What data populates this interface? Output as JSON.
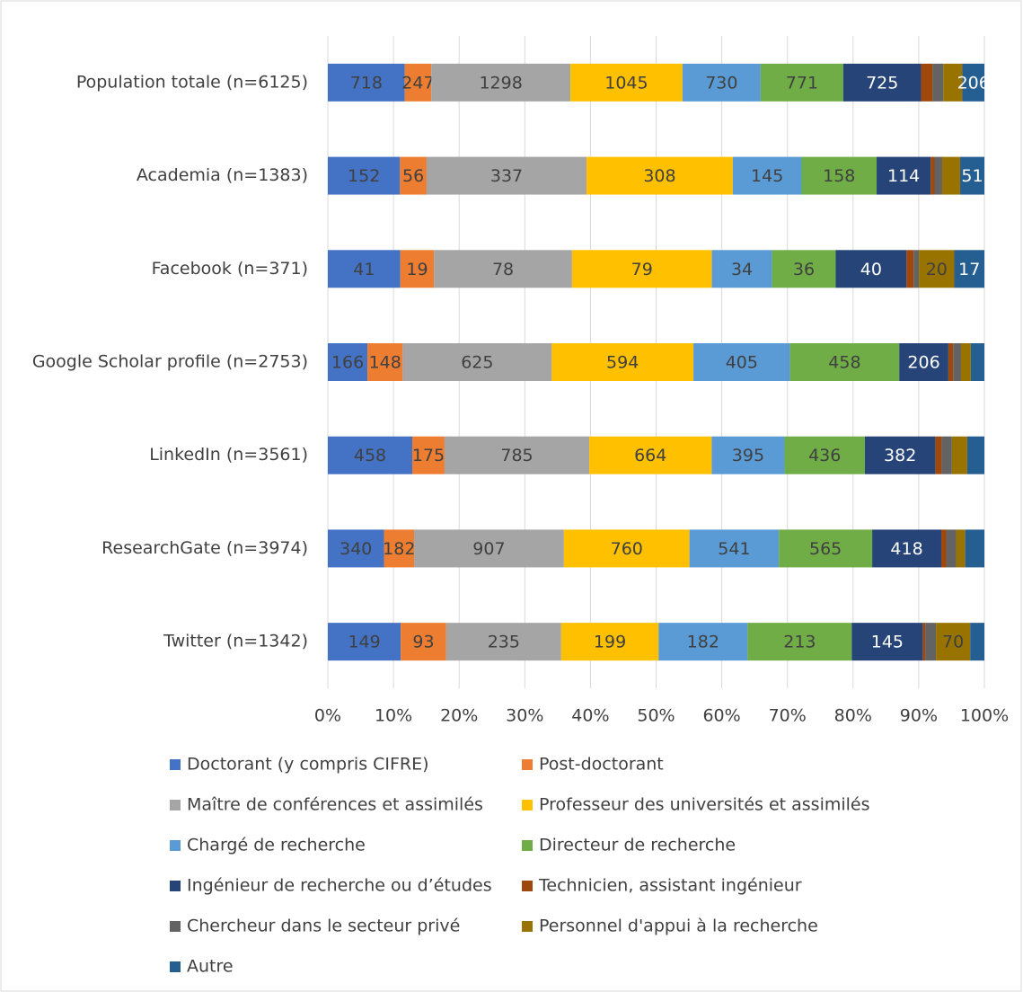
{
  "chart_data": {
    "type": "bar",
    "orientation": "horizontal",
    "stacking": "percent",
    "categories": [
      "Population totale (n=6125)",
      "Academia (n=1383)",
      "Facebook (n=371)",
      "Google Scholar profile (n=2753)",
      "LinkedIn (n=3561)",
      "ResearchGate (n=3974)",
      "Twitter (n=1342)"
    ],
    "series": [
      {
        "name": "Doctorant (y compris CIFRE)",
        "color": "#4472c4",
        "values": [
          718,
          152,
          41,
          166,
          458,
          340,
          149
        ]
      },
      {
        "name": "Post-doctorant",
        "color": "#ed7d31",
        "values": [
          247,
          56,
          19,
          148,
          175,
          182,
          93
        ]
      },
      {
        "name": "Maître de conférences et assimilés",
        "color": "#a5a5a5",
        "values": [
          1298,
          337,
          78,
          625,
          785,
          907,
          235
        ]
      },
      {
        "name": "Professeur des universités et assimilés",
        "color": "#ffc000",
        "values": [
          1045,
          308,
          79,
          594,
          664,
          760,
          199
        ]
      },
      {
        "name": "Chargé de recherche",
        "color": "#5b9bd5",
        "values": [
          730,
          145,
          34,
          405,
          395,
          541,
          182
        ]
      },
      {
        "name": "Directeur de recherche",
        "color": "#70ad47",
        "values": [
          771,
          158,
          36,
          458,
          436,
          565,
          213
        ]
      },
      {
        "name": "Ingénieur de recherche ou d’études",
        "color": "#264478",
        "values": [
          725,
          114,
          40,
          206,
          382,
          418,
          145
        ]
      },
      {
        "name": "Technicien, assistant ingénieur",
        "color": "#9e480e",
        "values": [
          108,
          8,
          4,
          20,
          35,
          30,
          5
        ]
      },
      {
        "name": "Chercheur dans le secteur privé",
        "color": "#636363",
        "values": [
          100,
          16,
          3,
          33,
          55,
          60,
          22
        ]
      },
      {
        "name": "Personnel d'appui à la recherche",
        "color": "#997300",
        "values": [
          177,
          38,
          20,
          41,
          83,
          55,
          70
        ]
      },
      {
        "name": "Autre",
        "color": "#255e91",
        "values": [
          206,
          51,
          17,
          57,
          93,
          116,
          29
        ]
      }
    ],
    "xlim": [
      0,
      100
    ],
    "xticks": [
      {
        "value": 0,
        "label": "0%"
      },
      {
        "value": 10,
        "label": "10%"
      },
      {
        "value": 20,
        "label": "20%"
      },
      {
        "value": 30,
        "label": "30%"
      },
      {
        "value": 40,
        "label": "40%"
      },
      {
        "value": 50,
        "label": "50%"
      },
      {
        "value": 60,
        "label": "60%"
      },
      {
        "value": 70,
        "label": "70%"
      },
      {
        "value": 80,
        "label": "80%"
      },
      {
        "value": 90,
        "label": "90%"
      },
      {
        "value": 100,
        "label": "100%"
      }
    ],
    "grid": true,
    "legend": "bottom"
  }
}
